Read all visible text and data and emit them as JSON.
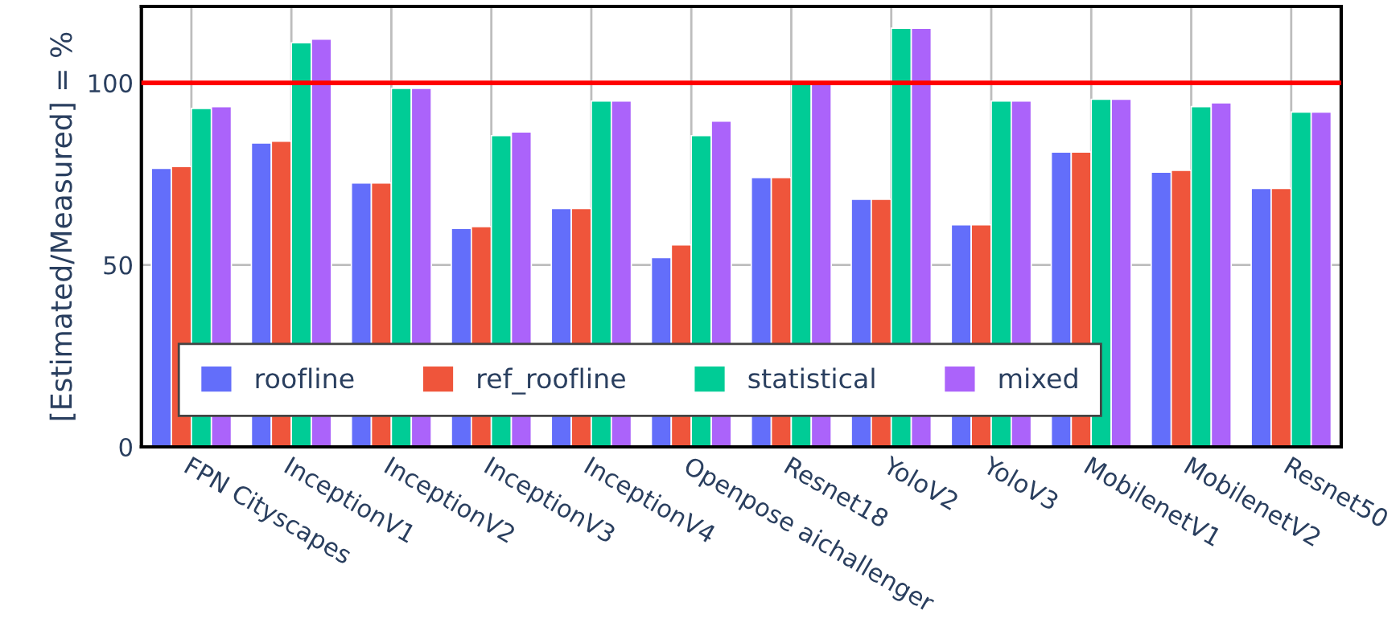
{
  "chart_data": {
    "type": "bar",
    "ylabel": "[Estimated/Measured] = %",
    "categories": [
      "FPN Cityscapes",
      "InceptionV1",
      "InceptionV2",
      "InceptionV3",
      "InceptionV4",
      "Openpose aichallenger",
      "Resnet18",
      "YoloV2",
      "YoloV3",
      "MobilenetV1",
      "MobilenetV2",
      "Resnet50"
    ],
    "series": [
      {
        "name": "roofline",
        "color": "#636efa",
        "values": [
          76.5,
          83.5,
          72.5,
          60,
          65.5,
          52,
          74,
          68,
          61,
          81,
          75.5,
          71
        ]
      },
      {
        "name": "ref_roofline",
        "color": "#ef553b",
        "values": [
          77,
          84,
          72.5,
          60.5,
          65.5,
          55.5,
          74,
          68,
          61,
          81,
          76,
          71
        ]
      },
      {
        "name": "statistical",
        "color": "#00cc96",
        "values": [
          93,
          111,
          98.5,
          85.5,
          95,
          85.5,
          100,
          115,
          95,
          95.5,
          93.5,
          92
        ]
      },
      {
        "name": "mixed",
        "color": "#ab63fa",
        "values": [
          93.5,
          112,
          98.5,
          86.5,
          95,
          89.5,
          100.5,
          115,
          95,
          95.5,
          94.5,
          92
        ]
      }
    ],
    "ylim": [
      0,
      121
    ],
    "yticks": [
      0,
      50,
      100
    ],
    "ref_lines": [
      {
        "axis": "y",
        "value": 100,
        "color": "#ff0000"
      }
    ],
    "grid": true,
    "legend": "bottom left"
  }
}
